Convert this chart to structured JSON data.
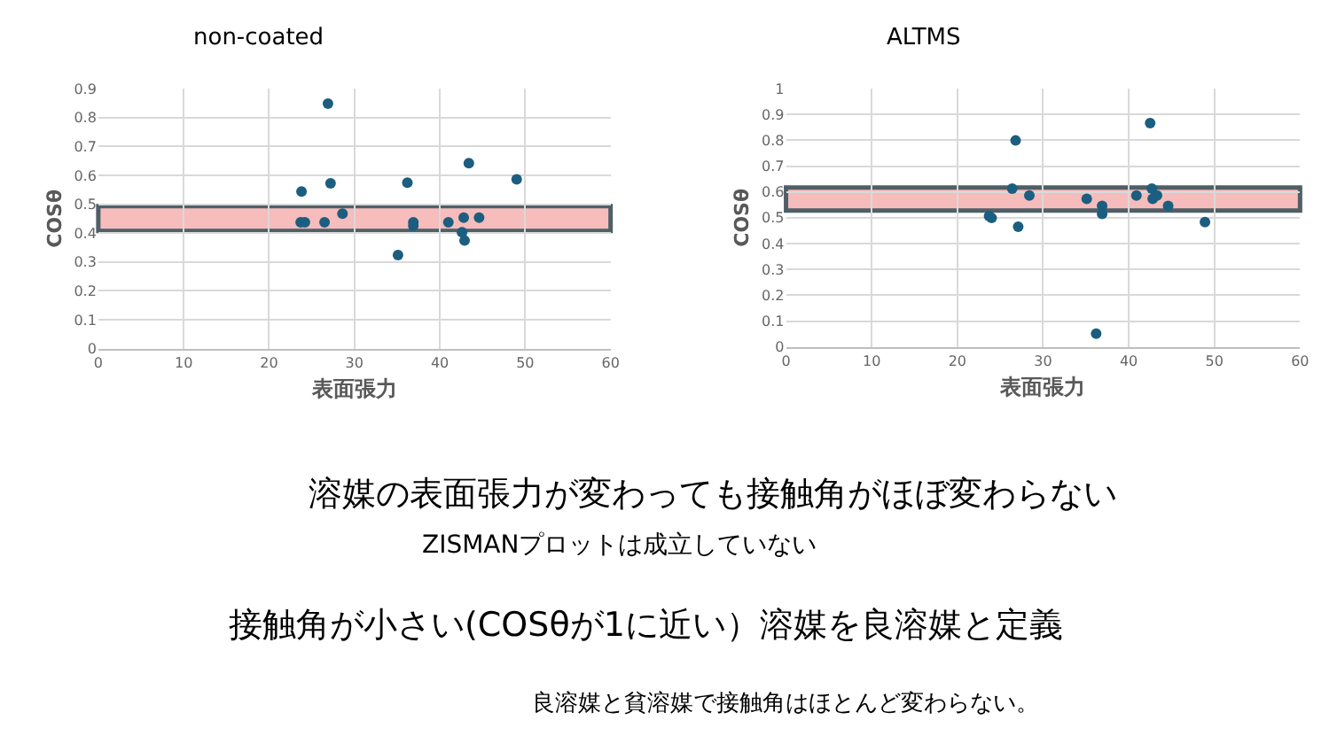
{
  "chart_data": [
    {
      "type": "scatter",
      "title": "non-coated",
      "xlabel": "表面張力",
      "ylabel": "COSθ",
      "marker": "circle",
      "grid": true,
      "xlim": [
        0,
        60
      ],
      "xticks": [
        0,
        10,
        20,
        30,
        40,
        50,
        60
      ],
      "ylim": [
        0,
        0.9
      ],
      "yticks": [
        0,
        0.1,
        0.2,
        0.3,
        0.4,
        0.5,
        0.6,
        0.7,
        0.8,
        0.9
      ],
      "series": [
        {
          "color": "#1b5e80",
          "x": [
            23.8,
            26.9,
            27.2,
            23.7,
            24.2,
            26.5,
            28.6,
            36.2,
            35.1,
            36.9,
            36.9,
            41.0,
            42.8,
            42.6,
            42.9,
            43.4,
            44.6,
            49.0
          ],
          "values": [
            0.544,
            0.848,
            0.572,
            0.437,
            0.437,
            0.437,
            0.467,
            0.574,
            0.324,
            0.437,
            0.425,
            0.437,
            0.453,
            0.403,
            0.374,
            0.642,
            0.453,
            0.586
          ]
        }
      ],
      "bands": [
        {
          "axis": "y",
          "from": 0.407,
          "to": 0.493,
          "color": "#f4a6a6"
        }
      ]
    },
    {
      "type": "scatter",
      "title": "ALTMS",
      "xlabel": "表面張力",
      "ylabel": "COSθ",
      "marker": "circle",
      "grid": true,
      "xlim": [
        0,
        60
      ],
      "xticks": [
        0,
        10,
        20,
        30,
        40,
        50,
        60
      ],
      "ylim": [
        0,
        1
      ],
      "yticks": [
        0,
        0.1,
        0.2,
        0.3,
        0.4,
        0.5,
        0.6,
        0.7,
        0.8,
        0.9,
        1
      ],
      "series": [
        {
          "color": "#1b5e80",
          "x": [
            23.7,
            24.0,
            26.8,
            26.4,
            27.1,
            28.4,
            35.1,
            36.2,
            36.9,
            36.9,
            40.9,
            42.5,
            42.7,
            42.8,
            43.3,
            44.6,
            48.9
          ],
          "values": [
            0.506,
            0.499,
            0.799,
            0.613,
            0.465,
            0.586,
            0.573,
            0.051,
            0.546,
            0.515,
            0.586,
            0.866,
            0.613,
            0.573,
            0.586,
            0.546,
            0.483
          ]
        }
      ],
      "bands": [
        {
          "axis": "y",
          "from": 0.528,
          "to": 0.617,
          "color": "#f4a6a6"
        }
      ]
    },
    {
      "type": "other",
      "annotations": [
        "溶媒の表面張力が変わっても接触角がほぼ変わらない",
        "ZISMANプロットは成立していない",
        "接触角が小さい(COSθが1に近い）溶媒を良溶媒と定義",
        "良溶媒と貧溶媒で接触角はほとんど変わらない。"
      ]
    }
  ]
}
